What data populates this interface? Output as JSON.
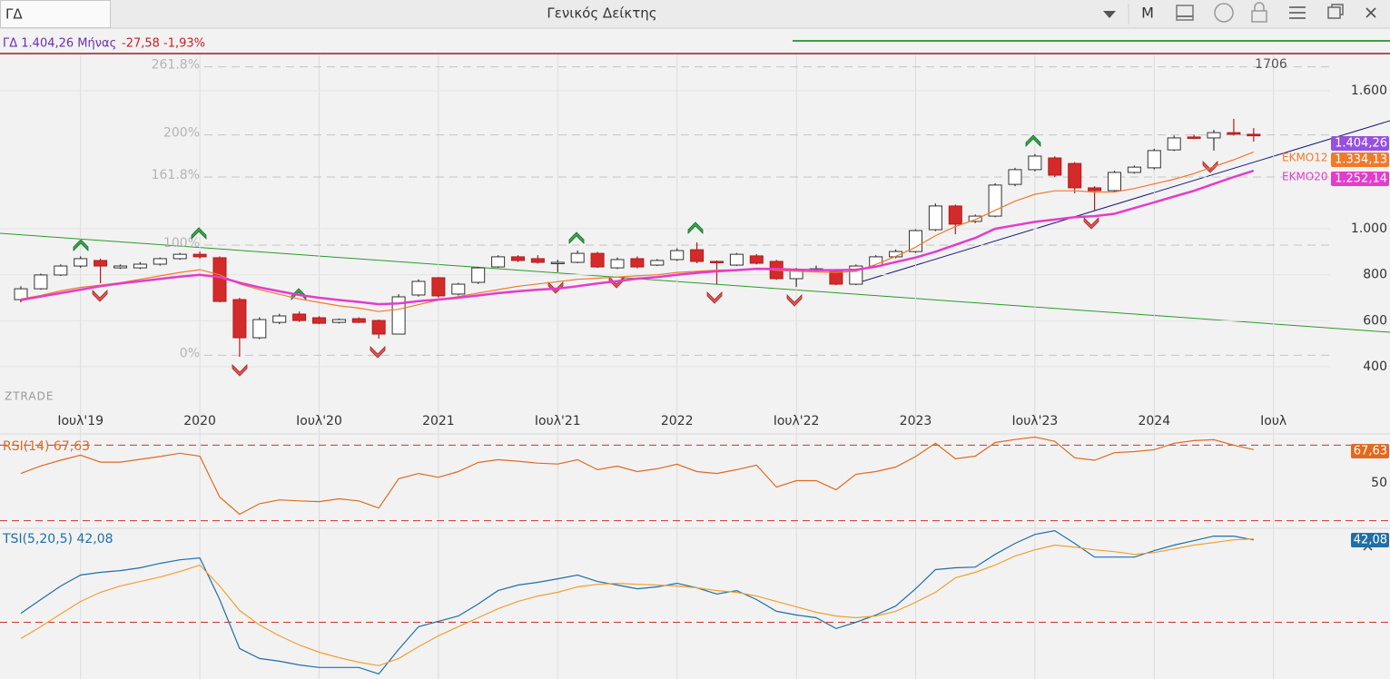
{
  "toolbar": {
    "symbol": "ΓΔ",
    "title": "Γενικός Δείκτης",
    "period": "M"
  },
  "info": {
    "symbol_line": "ΓΔ 1.404,26 Μήνας",
    "change": "-27,58 -1,93%"
  },
  "chart_data": [
    {
      "type": "candlestick",
      "categories": [
        null,
        null,
        null,
        "Ιουλ'19",
        null,
        null,
        null,
        null,
        null,
        "2020",
        null,
        null,
        null,
        null,
        null,
        "Ιουλ'20",
        null,
        null,
        null,
        null,
        null,
        "2021",
        null,
        null,
        null,
        null,
        null,
        "Ιουλ'21",
        null,
        null,
        null,
        null,
        null,
        "2022",
        null,
        null,
        null,
        null,
        null,
        "Ιουλ'22",
        null,
        null,
        null,
        null,
        null,
        "2023",
        null,
        null,
        null,
        null,
        null,
        "Ιουλ'23",
        null,
        null,
        null,
        null,
        null,
        "2024",
        null,
        null,
        null,
        null,
        null,
        "Ιουλ"
      ],
      "open": [
        692,
        739,
        799,
        838,
        862,
        830,
        830,
        846,
        870,
        889,
        874,
        692,
        526,
        593,
        629,
        613,
        593,
        609,
        601,
        542,
        712,
        787,
        716,
        767,
        834,
        878,
        870,
        854,
        854,
        893,
        830,
        870,
        842,
        866,
        909,
        858,
        842,
        882,
        858,
        783,
        826,
        822,
        759,
        838,
        878,
        901,
        996,
        1099,
        1032,
        1055,
        1193,
        1257,
        1308,
        1284,
        1178,
        1166,
        1245,
        1265,
        1343,
        1399,
        1395,
        1418,
        1411,
        null
      ],
      "high": [
        750,
        805,
        845,
        880,
        870,
        845,
        855,
        875,
        895,
        901,
        880,
        700,
        615,
        630,
        640,
        620,
        610,
        615,
        605,
        715,
        780,
        790,
        765,
        835,
        885,
        885,
        885,
        865,
        905,
        900,
        875,
        880,
        868,
        915,
        941,
        862,
        895,
        890,
        865,
        830,
        840,
        825,
        845,
        885,
        910,
        998,
        1110,
        1105,
        1062,
        1198,
        1265,
        1325,
        1315,
        1290,
        1185,
        1252,
        1275,
        1348,
        1405,
        1410,
        1430,
        1478,
        1438,
        null
      ],
      "low": [
        680,
        735,
        795,
        830,
        763,
        825,
        825,
        840,
        865,
        870,
        680,
        443,
        520,
        585,
        595,
        585,
        588,
        590,
        522,
        540,
        705,
        700,
        710,
        760,
        830,
        855,
        848,
        810,
        850,
        830,
        825,
        828,
        838,
        860,
        850,
        759,
        838,
        845,
        778,
        747,
        815,
        755,
        755,
        832,
        872,
        895,
        990,
        976,
        1025,
        1050,
        1185,
        1250,
        1225,
        1154,
        1079,
        1160,
        1240,
        1258,
        1338,
        1390,
        1340,
        1405,
        1379,
        null
      ],
      "close": [
        739,
        799,
        838,
        870,
        838,
        838,
        846,
        870,
        889,
        878,
        684,
        526,
        605,
        621,
        601,
        589,
        605,
        593,
        542,
        704,
        771,
        708,
        759,
        830,
        878,
        862,
        854,
        854,
        893,
        834,
        866,
        834,
        862,
        905,
        858,
        854,
        889,
        850,
        783,
        822,
        826,
        759,
        838,
        878,
        901,
        992,
        1099,
        1020,
        1055,
        1190,
        1257,
        1316,
        1233,
        1178,
        1166,
        1245,
        1268,
        1340,
        1395,
        1395,
        1418,
        1411,
        1404.26,
        null
      ],
      "close_label": "1.404,26",
      "up_color": "#ffffff",
      "down_color": "#d42a2a",
      "label_color": "#9650e0",
      "series": [
        {
          "name": "ΕΚΜΟ12",
          "color": "#f07a2c",
          "last_label": "1.334,13",
          "values": [
            695,
            710,
            730,
            745,
            755,
            765,
            780,
            795,
            810,
            822,
            800,
            760,
            735,
            715,
            695,
            680,
            665,
            655,
            640,
            650,
            670,
            690,
            705,
            720,
            735,
            750,
            760,
            770,
            780,
            785,
            790,
            795,
            800,
            810,
            815,
            820,
            822,
            825,
            820,
            815,
            812,
            810,
            815,
            845,
            880,
            920,
            970,
            1010,
            1040,
            1080,
            1120,
            1150,
            1165,
            1165,
            1160,
            1160,
            1175,
            1195,
            1215,
            1240,
            1270,
            1300,
            1334.13,
            null
          ]
        },
        {
          "name": "ΕΚΜΟ20",
          "color": "#e43ccc",
          "last_label": "1.252,14",
          "values": [
            690,
            705,
            720,
            735,
            750,
            762,
            772,
            782,
            792,
            800,
            790,
            765,
            745,
            728,
            712,
            700,
            690,
            682,
            672,
            675,
            685,
            692,
            700,
            710,
            720,
            728,
            735,
            740,
            750,
            762,
            772,
            783,
            790,
            800,
            808,
            815,
            820,
            826,
            825,
            822,
            820,
            820,
            822,
            835,
            855,
            875,
            900,
            930,
            960,
            1000,
            1015,
            1030,
            1040,
            1050,
            1055,
            1065,
            1090,
            1115,
            1140,
            1165,
            1195,
            1225,
            1252.14,
            null
          ]
        }
      ],
      "ylim": [
        246,
        1758
      ],
      "yticks": [
        400,
        600,
        800,
        {
          "value": 1000,
          "label": "1.000"
        },
        {
          "value": 1600,
          "label": "1.600"
        }
      ],
      "grid": true,
      "fib_levels": [
        {
          "value": 1704,
          "label": "261.8%"
        },
        {
          "value": 1408,
          "label": "200%"
        },
        {
          "value": 1225,
          "label": "161.8%"
        },
        {
          "value": 929,
          "label": "100%"
        },
        {
          "value": 450,
          "label": "0%"
        }
      ],
      "annotation": "1706",
      "watermark": "ZTRADE"
    },
    {
      "type": "line",
      "title": "RSI(14) 67,63",
      "series": [
        {
          "color": "#e06a20",
          "last_label": "67,63",
          "values": [
            55,
            59,
            62,
            64.7,
            61,
            61,
            62.5,
            64,
            65.7,
            64.2,
            42.5,
            33.4,
            39,
            41,
            40.5,
            40.1,
            41.6,
            40.5,
            36.7,
            52.2,
            55,
            53,
            56,
            60.8,
            62.3,
            61.5,
            60.5,
            60,
            62.3,
            57,
            58.9,
            56,
            57.5,
            59.9,
            56,
            55,
            57,
            59.4,
            47.8,
            51.2,
            51.2,
            46.4,
            54.6,
            56,
            58.4,
            64,
            71,
            62.8,
            64.2,
            71.4,
            73,
            74.3,
            72,
            63.3,
            62,
            66,
            66.6,
            67.6,
            71,
            72.4,
            72.9,
            70,
            67.63,
            null
          ]
        }
      ],
      "ylim": [
        25,
        75
      ],
      "yticks": [
        50
      ],
      "levels": [
        70,
        30
      ],
      "level_color": "#d03030"
    },
    {
      "type": "line",
      "title": "TSI(5,20,5) 42,08",
      "series": [
        {
          "color": "#1f6fa8",
          "last_label": "42,08",
          "values": [
            4.6,
            11.6,
            18.5,
            24.1,
            25.5,
            26.4,
            27.8,
            30.1,
            31.9,
            32.9,
            11.6,
            -13.4,
            -18.5,
            -19.9,
            -21.8,
            -23.1,
            -23.1,
            -23.1,
            -26.4,
            -13.9,
            -2.3,
            0.5,
            3.2,
            9.3,
            16.2,
            19,
            20.4,
            22.2,
            24.1,
            20.8,
            19,
            17.1,
            18.1,
            19.9,
            17.6,
            14.4,
            16.2,
            11.6,
            5.6,
            3.7,
            2.3,
            -3.2,
            0,
            3.7,
            8.3,
            17.1,
            26.9,
            27.8,
            28.2,
            34.7,
            40.3,
            44.9,
            46.8,
            40.3,
            33.3,
            33.3,
            33.3,
            36.6,
            39.4,
            41.7,
            44,
            44,
            42.08,
            null
          ]
        },
        {
          "color": "#f0a030",
          "values": [
            -8.3,
            -2.3,
            4.2,
            10.6,
            15.3,
            18.5,
            20.8,
            23.1,
            25.9,
            29.2,
            18.5,
            6,
            -1.4,
            -6.9,
            -11.6,
            -15.3,
            -18.1,
            -20.4,
            -22.2,
            -18.5,
            -12.5,
            -6.9,
            -2.3,
            2.3,
            6.9,
            10.6,
            13.4,
            15.3,
            18.1,
            19.4,
            19.9,
            19.4,
            19,
            18.5,
            17.6,
            16.2,
            15.3,
            13.4,
            10.6,
            7.9,
            5.1,
            3.2,
            2.3,
            3.2,
            5.6,
            10.2,
            15.3,
            22.7,
            25.5,
            29.2,
            33.8,
            37,
            39.4,
            38.4,
            37,
            36.1,
            34.7,
            35.6,
            37.5,
            39.4,
            40.7,
            42.1,
            42.6,
            null
          ]
        }
      ],
      "ylim": [
        -29,
        48
      ],
      "levels": [
        0
      ],
      "level_color": "#d03030"
    }
  ]
}
